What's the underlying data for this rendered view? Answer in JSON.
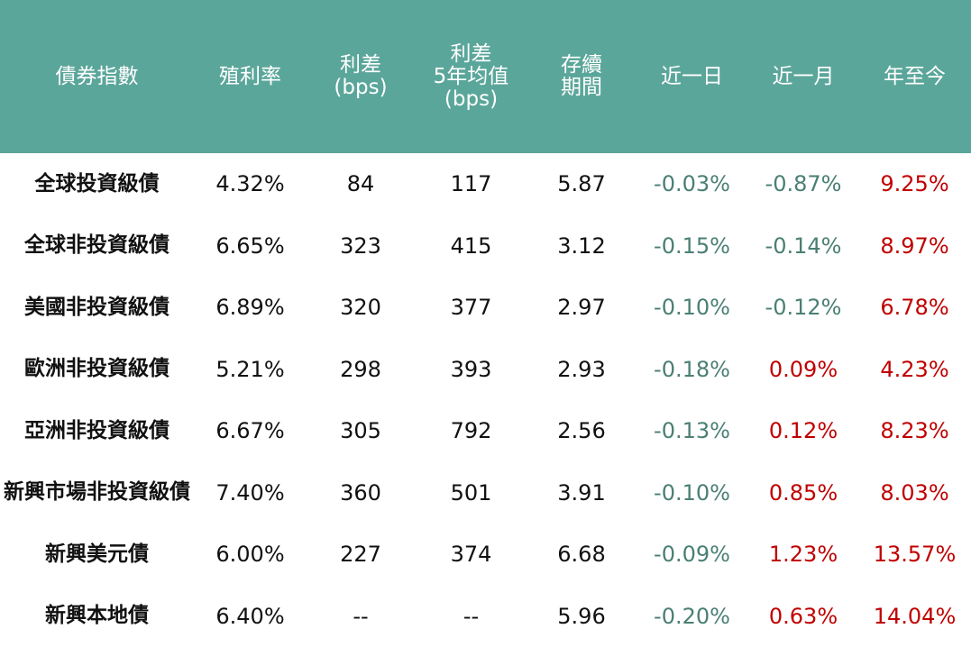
{
  "table": {
    "header": [
      "債券指數",
      "殖利率",
      "利差\n(bps)",
      "利差\n5年均值\n(bps)",
      "存續\n期間",
      "近一日",
      "近一月",
      "年至今"
    ],
    "rows": [
      [
        "全球投資級債",
        "4.32%",
        "84",
        "117",
        "5.87",
        "-0.03%",
        "-0.87%",
        "9.25%"
      ],
      [
        "全球非投資級債",
        "6.65%",
        "323",
        "415",
        "3.12",
        "-0.15%",
        "-0.14%",
        "8.97%"
      ],
      [
        "美國非投資級債",
        "6.89%",
        "320",
        "377",
        "2.97",
        "-0.10%",
        "-0.12%",
        "6.78%"
      ],
      [
        "歐洲非投資級債",
        "5.21%",
        "298",
        "393",
        "2.93",
        "-0.18%",
        "0.09%",
        "4.23%"
      ],
      [
        "亞洲非投資級債",
        "6.67%",
        "305",
        "792",
        "2.56",
        "-0.13%",
        "0.12%",
        "8.23%"
      ],
      [
        "新興市場非投資級債",
        "7.40%",
        "360",
        "501",
        "3.91",
        "-0.10%",
        "0.85%",
        "8.03%"
      ],
      [
        "新興美元債",
        "6.00%",
        "227",
        "374",
        "6.68",
        "-0.09%",
        "1.23%",
        "13.57%"
      ],
      [
        "新興本地債",
        "6.40%",
        "--",
        "--",
        "5.96",
        "-0.20%",
        "0.63%",
        "14.04%"
      ]
    ]
  }
}
